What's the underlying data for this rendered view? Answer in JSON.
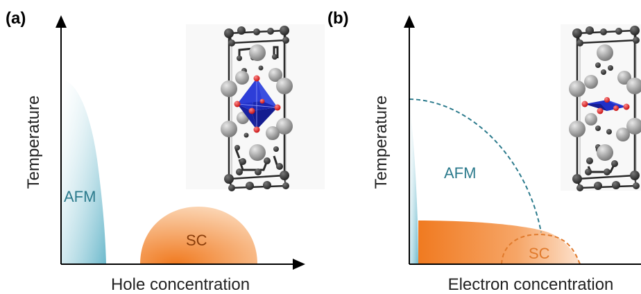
{
  "panels": [
    {
      "label": "(a)",
      "xlabel": "Hole concentration",
      "ylabel": "Temperature",
      "afm_label": "AFM",
      "sc_label": "SC"
    },
    {
      "label": "(b)",
      "xlabel": "Electron concentration",
      "ylabel": "Temperature",
      "afm_label": "AFM",
      "sc_label": "SC"
    }
  ],
  "colors": {
    "afm": "#7fc3d3",
    "afm_text": "#2b7a8c",
    "sc": "#f4a15d",
    "sc_text": "#e07a2c",
    "dashed_afm": "#2b7a8c",
    "dashed_sc": "#e07a2c",
    "oxygen": "#e02020",
    "octahedron": "#1f2fd0",
    "atom_dark": "#2a2a2a",
    "atom_grey": "#8a8a8a"
  }
}
